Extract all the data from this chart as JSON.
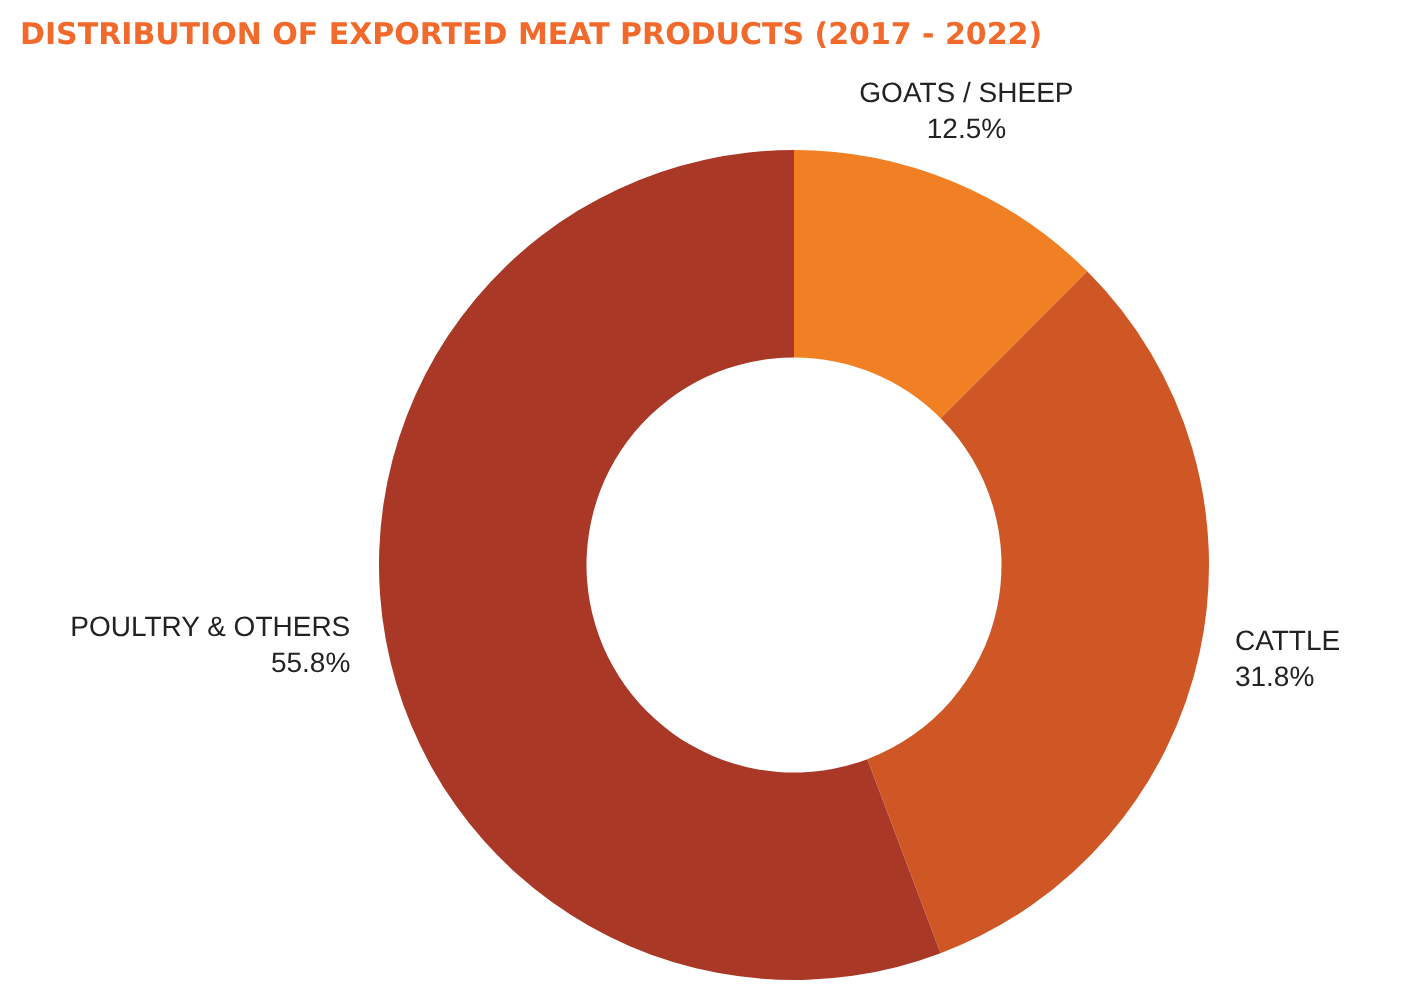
{
  "chart_data": {
    "type": "donut",
    "title": "DISTRIBUTION OF EXPORTED MEAT PRODUCTS (2017 - 2022)",
    "categories": [
      "GOATS / SHEEP",
      "CATTLE",
      "POULTRY & OTHERS"
    ],
    "values": [
      12.5,
      31.8,
      55.8
    ],
    "value_labels": [
      "12.5%",
      "31.8%",
      "55.8%"
    ],
    "colors": [
      "#f08023",
      "#cf5726",
      "#a93826"
    ],
    "legend": false
  }
}
